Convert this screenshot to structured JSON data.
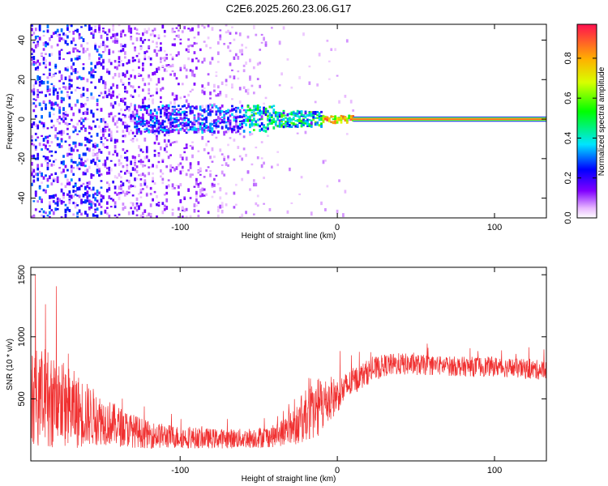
{
  "title": "C2E6.2025.260.23.06.G17",
  "colors": {
    "snr_line": "#f03030",
    "frame": "#000000",
    "background": "#ffffff"
  },
  "chart_data": [
    {
      "type": "heatmap",
      "xlabel": "Height of straight line (km)",
      "ylabel": "Frequency (Hz)",
      "xlim": [
        -195,
        133
      ],
      "ylim": [
        -50,
        48
      ],
      "xticks": [
        -100,
        0,
        100
      ],
      "yticks": [
        -40,
        -20,
        0,
        20,
        40
      ],
      "grid": false,
      "colorbar": {
        "label": "Normalized spectral amplitude",
        "range": [
          0,
          0.97
        ],
        "ticks": [
          0.0,
          0.2,
          0.4,
          0.6,
          0.8
        ],
        "tick_labels": [
          "0.0",
          "0.2",
          "0.4",
          "0.6",
          "0.8"
        ],
        "colormap": "rainbow (white-violet-blue-cyan-green-yellow-red)"
      },
      "features": {
        "noise_region_x": [
          -195,
          -45
        ],
        "broadband_cluster_x": [
          -130,
          -20
        ],
        "narrow_line_start_x": 10,
        "narrow_line_frequency": 0,
        "narrow_line_amplitude": 0.95
      }
    },
    {
      "type": "line",
      "xlabel": "Height of straight line (km)",
      "ylabel": "SNR (10 * v/v)",
      "xlim": [
        -195,
        133
      ],
      "ylim": [
        0,
        1560
      ],
      "xticks": [
        -100,
        0,
        100
      ],
      "yticks": [
        500,
        1000,
        1500
      ],
      "grid": false,
      "series": [
        {
          "envelope_x": [
            -195,
            -185,
            -175,
            -165,
            -150,
            -135,
            -120,
            -100,
            -80,
            -60,
            -40,
            -30,
            -20,
            -10,
            0,
            10,
            20,
            30,
            40,
            60,
            80,
            100,
            120,
            133
          ],
          "envelope_mean": [
            520,
            500,
            450,
            400,
            330,
            260,
            210,
            190,
            180,
            180,
            200,
            260,
            360,
            450,
            530,
            640,
            720,
            770,
            780,
            770,
            760,
            760,
            740,
            730
          ],
          "envelope_amplitude": [
            380,
            400,
            360,
            300,
            200,
            150,
            110,
            90,
            80,
            80,
            90,
            130,
            220,
            240,
            140,
            110,
            100,
            90,
            90,
            80,
            80,
            80,
            80,
            80
          ],
          "peak_max": 1540
        }
      ]
    }
  ]
}
